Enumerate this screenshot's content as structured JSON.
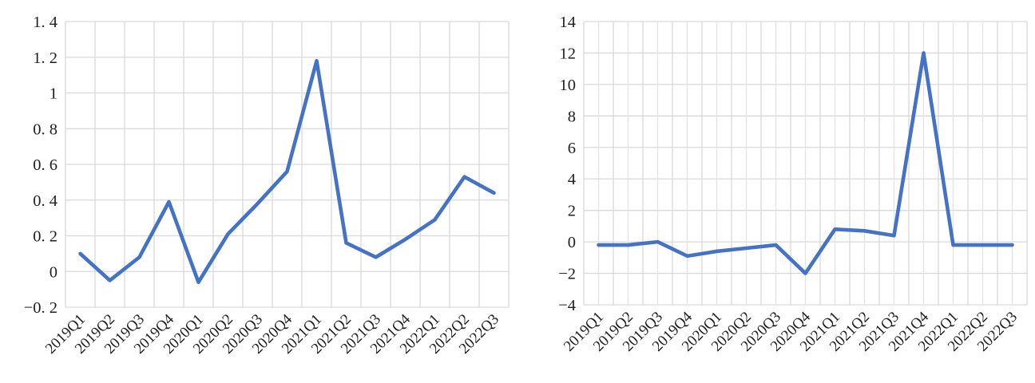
{
  "figure": {
    "background": "#ffffff",
    "line_color": "#4472C4",
    "grid_color": "#d9d9d9",
    "minor_grid_color": "#e3e3e3",
    "text_color": "#1f1f1f"
  },
  "chart_data": [
    {
      "type": "line",
      "position": "left",
      "title": "",
      "xlabel": "",
      "ylabel": "",
      "legend": "none",
      "grid": "major",
      "categories": [
        "2019Q1",
        "2019Q2",
        "2019Q3",
        "2019Q4",
        "2020Q1",
        "2020Q2",
        "2020Q3",
        "2020Q4",
        "2021Q1",
        "2021Q2",
        "2021Q3",
        "2021Q4",
        "2022Q1",
        "2022Q2",
        "2022Q3"
      ],
      "series": [
        {
          "name": "",
          "values": [
            0.1,
            -0.05,
            0.08,
            0.39,
            -0.06,
            0.21,
            0.38,
            0.56,
            1.18,
            0.16,
            0.08,
            0.18,
            0.29,
            0.53,
            0.44
          ]
        }
      ],
      "ylim": [
        -0.2,
        1.4
      ],
      "ytick_step": 0.2,
      "ytick_labels_top_to_bottom": [
        "1. 4",
        "1. 2",
        "1",
        "0. 8",
        "0. 6",
        "0. 4",
        "0. 2",
        "0",
        "−0. 2"
      ]
    },
    {
      "type": "line",
      "position": "right",
      "title": "",
      "xlabel": "",
      "ylabel": "",
      "legend": "none",
      "grid": "major-y-minor-x",
      "categories": [
        "2019Q1",
        "2019Q2",
        "2019Q3",
        "2019Q4",
        "2020Q1",
        "2020Q2",
        "2020Q3",
        "2020Q4",
        "2021Q1",
        "2021Q2",
        "2021Q3",
        "2021Q4",
        "2022Q1",
        "2022Q2",
        "2022Q3"
      ],
      "series": [
        {
          "name": "",
          "values": [
            -0.2,
            -0.2,
            0.0,
            -0.9,
            -0.6,
            -0.4,
            -0.2,
            -2.0,
            0.8,
            0.7,
            0.4,
            12.0,
            -0.2,
            -0.2,
            -0.2
          ]
        }
      ],
      "ylim": [
        -4,
        14
      ],
      "ytick_step": 2,
      "ytick_labels_top_to_bottom": [
        "14",
        "12",
        "10",
        "8",
        "6",
        "4",
        "2",
        "0",
        "−2",
        "−4"
      ]
    }
  ]
}
